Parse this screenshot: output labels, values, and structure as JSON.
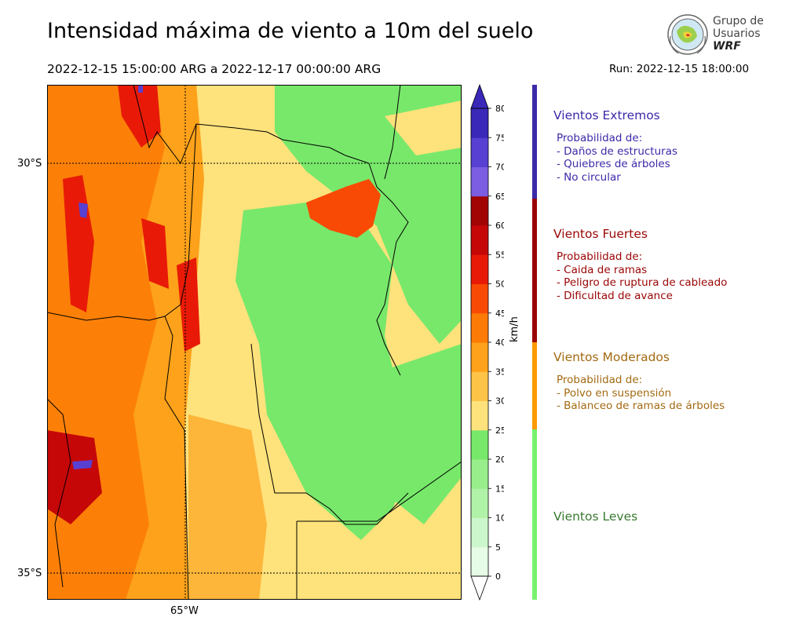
{
  "header": {
    "title": "Intensidad máxima de viento a 10m del suelo",
    "period": "2022-12-15 15:00:00 ARG  a  2022-12-17 00:00:00 ARG",
    "run": "Run: 2022-12-15 18:00:00"
  },
  "logo": {
    "line1": "Grupo de",
    "line2": "Usuarios",
    "line3": "WRF"
  },
  "map": {
    "lat_labels": [
      "30°S",
      "35°S"
    ],
    "lon_labels": [
      "65°W"
    ]
  },
  "colorbar": {
    "unit": "km/h",
    "ticks": [
      "0",
      "5",
      "10",
      "15",
      "20",
      "25",
      "30",
      "35",
      "40",
      "45",
      "50",
      "55",
      "60",
      "65",
      "70",
      "75",
      "80"
    ],
    "colors": [
      "#e6fce6",
      "#ccf7cc",
      "#b0f2a8",
      "#97ee8a",
      "#78e86b",
      "#fee27b",
      "#fdc448",
      "#fda21a",
      "#fc7a06",
      "#f84a05",
      "#e81a07",
      "#c60707",
      "#a20404",
      "#7a5de0",
      "#5840d2",
      "#3a28b8"
    ]
  },
  "categories": [
    {
      "title": "Vientos Extremos",
      "intro": "Probabilidad de:",
      "items": [
        "- Daños de estructuras",
        "- Quiebres de árboles",
        "- No circular"
      ],
      "color": "#3b2aa8",
      "bar": "#3b2aa8"
    },
    {
      "title": "Vientos Fuertes",
      "intro": "Probabilidad de:",
      "items": [
        "- Caida de ramas",
        "- Peligro de ruptura de cableado",
        "- Dificultad de avance"
      ],
      "color": "#9a0505",
      "bar": "#9a0505"
    },
    {
      "title": "Vientos Moderados",
      "intro": "Probabilidad de:",
      "items": [
        "- Polvo en suspensión",
        "- Balanceo de ramas de árboles"
      ],
      "color": "#a26a12",
      "bar": "#fd9a05"
    },
    {
      "title": "Vientos Leves",
      "intro": "",
      "items": [],
      "color": "#3a7a32",
      "bar": "#78f26c"
    }
  ]
}
